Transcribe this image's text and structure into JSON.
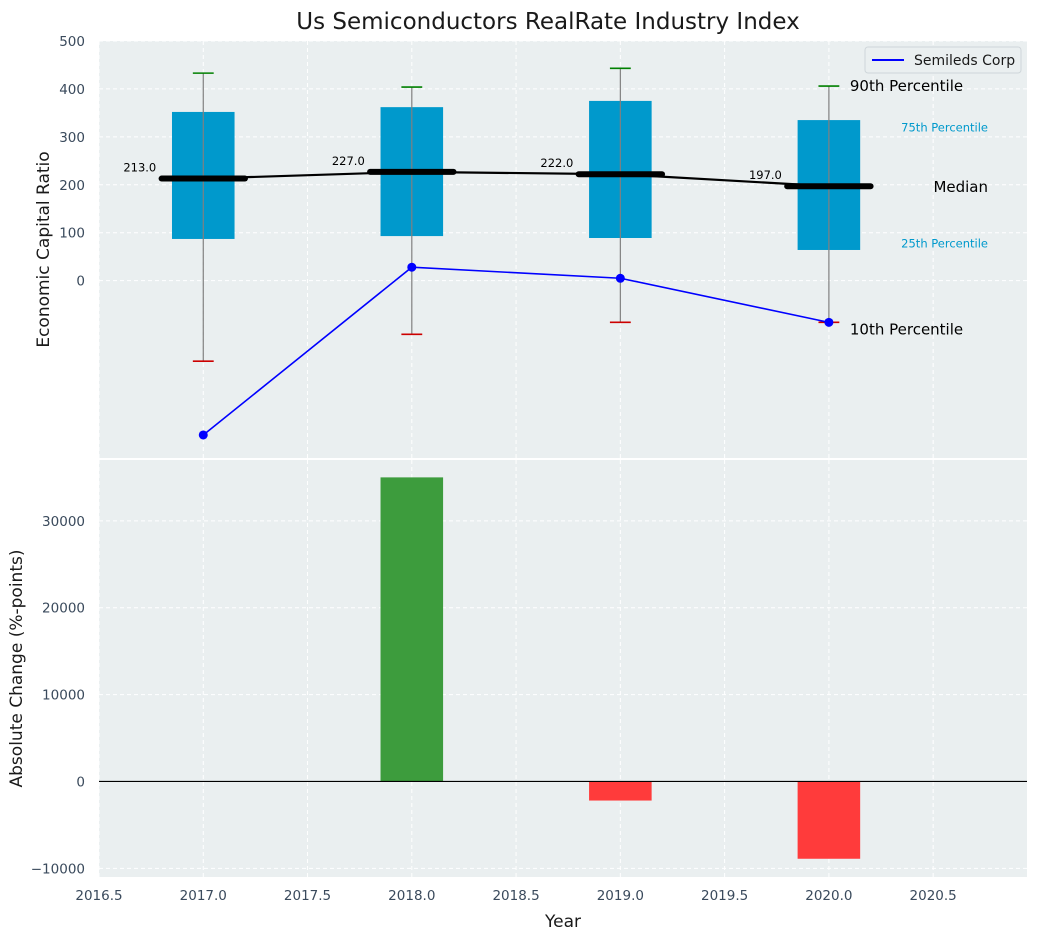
{
  "chart_data": [
    {
      "type": "box",
      "title": "Us Semiconductors RealRate Industry Index",
      "ylabel": "Economic Capital Ratio",
      "xlim": [
        2016.5,
        2020.95
      ],
      "ylim": [
        -370,
        500
      ],
      "yticks": [
        0,
        100,
        200,
        300,
        400,
        500
      ],
      "grid": true,
      "legend": {
        "position": "top-right",
        "entries": [
          "Semileds Corp"
        ]
      },
      "colors": {
        "box": "#0099cc",
        "median": "#000000",
        "company": "#0000ff",
        "cap_high": "#008000",
        "cap_low": "#cc0000",
        "whisker": "#808080",
        "background": "#eaeff0"
      },
      "boxes": [
        {
          "x": 2017,
          "p10": -168,
          "p25": 87,
          "median": 213,
          "p75": 352,
          "p90": 433
        },
        {
          "x": 2018,
          "p10": -112,
          "p25": 93,
          "median": 227,
          "p75": 362,
          "p90": 404
        },
        {
          "x": 2019,
          "p10": -87,
          "p25": 89,
          "median": 222,
          "p75": 375,
          "p90": 443
        },
        {
          "x": 2020,
          "p10": -87,
          "p25": 64,
          "median": 197,
          "p75": 335,
          "p90": 406
        }
      ],
      "median_labels": [
        "213.0",
        "227.0",
        "222.0",
        "197.0"
      ],
      "series": [
        {
          "name": "Semileds Corp",
          "x": [
            2017,
            2018,
            2019,
            2020
          ],
          "values": [
            -322,
            28,
            5,
            -87
          ]
        }
      ],
      "annotations": {
        "p90": "90th Percentile",
        "p75": "75th Percentile",
        "median": "Median",
        "p25": "25th Percentile",
        "p10": "10th Percentile"
      }
    },
    {
      "type": "bar",
      "xlabel": "Year",
      "ylabel": "Absolute Change (%-points)",
      "xlim": [
        2016.5,
        2020.95
      ],
      "ylim": [
        -11000,
        37000
      ],
      "yticks": [
        -10000,
        0,
        10000,
        20000,
        30000
      ],
      "ytick_labels": [
        "−10000",
        "0",
        "10000",
        "20000",
        "30000"
      ],
      "xticks": [
        2016.5,
        2017.0,
        2017.5,
        2018.0,
        2018.5,
        2019.0,
        2019.5,
        2020.0,
        2020.5
      ],
      "xtick_labels": [
        "2016.5",
        "2017.0",
        "2017.5",
        "2018.0",
        "2018.5",
        "2019.0",
        "2019.5",
        "2020.0",
        "2020.5"
      ],
      "grid": true,
      "x": [
        2018,
        2019,
        2020
      ],
      "values": [
        35000,
        -2200,
        -8900
      ],
      "colors": {
        "positive": "#3d9c3d",
        "negative": "#ff3b3b"
      }
    }
  ]
}
